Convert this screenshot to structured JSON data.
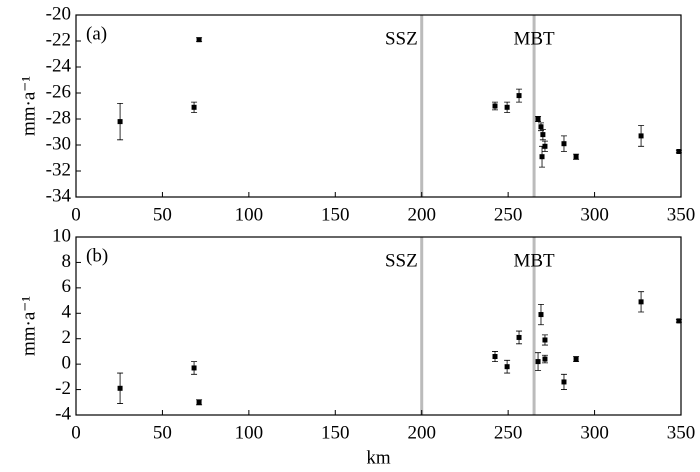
{
  "chart_data": [
    {
      "type": "scatter",
      "panel_label": "(a)",
      "ylabel": "mm·a⁻¹",
      "xlim": [
        0,
        350
      ],
      "xticks": [
        0,
        50,
        100,
        150,
        200,
        250,
        300,
        350
      ],
      "ylim": [
        -34,
        -20
      ],
      "yticks": [
        -34,
        -32,
        -30,
        -28,
        -26,
        -24,
        -22,
        -20
      ],
      "vlines": [
        {
          "x": 200,
          "label": "SSZ"
        },
        {
          "x": 265,
          "label": "MBT"
        }
      ],
      "series": [
        {
          "color": "#000000",
          "x": [
            25.5,
            68.3,
            71.2,
            242.4,
            249.4,
            256.3,
            267.3,
            269,
            270.1,
            271.3,
            269.6,
            282.3,
            289.3,
            326.9,
            348.8
          ],
          "values": [
            -28.2,
            -27.1,
            -21.9,
            -27.0,
            -27.1,
            -26.2,
            -28.0,
            -28.6,
            -29.2,
            -30.1,
            -30.9,
            -29.9,
            -30.9,
            -29.3,
            -30.5
          ],
          "errors": [
            1.4,
            0.4,
            0.15,
            0.3,
            0.4,
            0.5,
            0.2,
            0.3,
            0.4,
            0.4,
            0.8,
            0.6,
            0.2,
            0.8,
            0.1
          ]
        }
      ]
    },
    {
      "type": "scatter",
      "panel_label": "(b)",
      "ylabel": "mm·a⁻¹",
      "xlabel": "km",
      "xlim": [
        0,
        350
      ],
      "xticks": [
        0,
        50,
        100,
        150,
        200,
        250,
        300,
        350
      ],
      "ylim": [
        -4,
        10
      ],
      "yticks": [
        -4,
        -2,
        0,
        2,
        4,
        6,
        8,
        10
      ],
      "vlines": [
        {
          "x": 200,
          "label": "SSZ"
        },
        {
          "x": 265,
          "label": "MBT"
        }
      ],
      "series": [
        {
          "color": "#000000",
          "x": [
            25.5,
            68.3,
            71.2,
            242.4,
            249.4,
            256.3,
            267.3,
            269,
            271.3,
            271.3,
            282.3,
            289.3,
            326.9,
            348.8
          ],
          "values": [
            -1.9,
            -0.3,
            -3.0,
            0.6,
            -0.2,
            2.1,
            0.2,
            3.9,
            1.9,
            0.4,
            -1.4,
            0.4,
            4.9,
            3.4
          ],
          "errors": [
            1.2,
            0.5,
            0.2,
            0.4,
            0.5,
            0.5,
            0.7,
            0.8,
            0.4,
            0.3,
            0.6,
            0.2,
            0.8,
            0.1
          ]
        }
      ]
    }
  ]
}
